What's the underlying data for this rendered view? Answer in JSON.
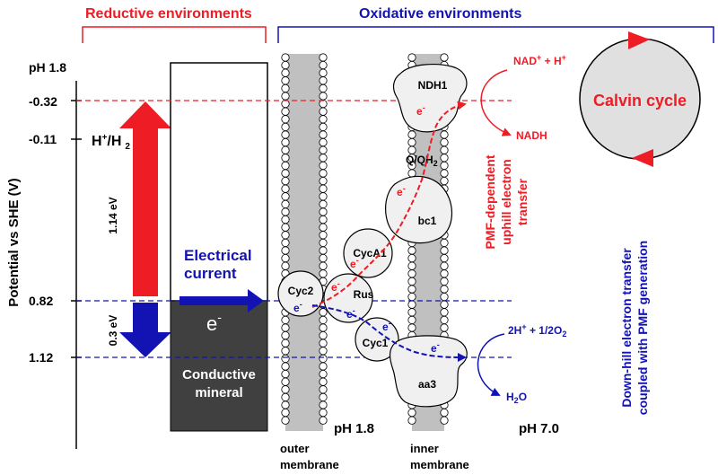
{
  "headers": {
    "reductive": "Reductive environments",
    "oxidative": "Oxidative environments"
  },
  "axis": {
    "ylabel": "Potential vs SHE (V)",
    "ph_top": "pH 1.8",
    "ticks": [
      "-0.32",
      "-0.11",
      "0.82",
      "1.12"
    ],
    "couple_h2_main": "H",
    "couple_h2_sup": "+",
    "couple_h2_mid": "/H",
    "couple_h2_sub": "2"
  },
  "energy": {
    "gap_uphill": "1.14 eV",
    "gap_downhill": "0.3 eV"
  },
  "mineral": {
    "electron": "e",
    "electron_sup": "-",
    "label_line1": "Conductive",
    "label_line2": "mineral"
  },
  "current": {
    "line1": "Electrical",
    "line2": "current"
  },
  "proteins": {
    "cyc2": "Cyc2",
    "rus": "Rus",
    "cyca1": "CycA1",
    "cyc1": "Cyc1",
    "bc1": "bc1",
    "aa3": "aa3",
    "ndh1": "NDH1",
    "quinone": "Q/QH",
    "quinone_sub": "2",
    "electron": "e",
    "electron_sup": "-"
  },
  "reactions": {
    "nad_main": "NAD",
    "nad_sup": "+",
    "nad_tail": " + H",
    "nad_sup2": "+",
    "nadh": "NADH",
    "o2_main": "2H",
    "o2_sup": "+",
    "o2_tail": " + 1/2O",
    "o2_sub": "2",
    "h2o_main": "H",
    "h2o_sub": "2",
    "h2o_tail": "O"
  },
  "calvin": "Calvin cycle",
  "side_labels": {
    "pmf_line1": "PMF-dependent",
    "pmf_line2": "uphill electron",
    "pmf_line3": "transfer",
    "down_line1": "Down-hill electron transfer",
    "down_line2": "coupled with PMF generation"
  },
  "bottom": {
    "ph_outer": "pH 1.8",
    "ph_inner": "pH 7.0",
    "outer_line1": "outer",
    "outer_line2": "membrane",
    "inner_line1": "inner",
    "inner_line2": "membrane"
  },
  "colors": {
    "red": "#ee1c25",
    "blue": "#1313b4",
    "membrane": "#c0c0c0",
    "mineral": "#404040",
    "protein": "#f0f0f0"
  }
}
